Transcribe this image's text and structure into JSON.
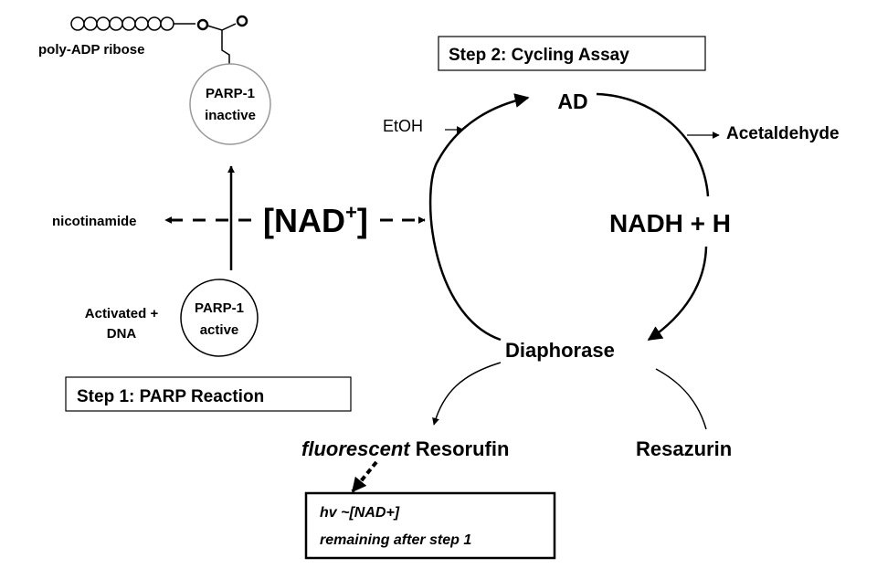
{
  "labels": {
    "poly_adp_ribose": "poly-ADP ribose",
    "parp_inactive_line1": "PARP-1",
    "parp_inactive_line2": "inactive",
    "parp_active_line1": "PARP-1",
    "parp_active_line2": "active",
    "activated_dna_line1": "Activated +",
    "activated_dna_line2": "DNA",
    "nicotinamide": "nicotinamide",
    "nad_main": "[NAD",
    "nad_sup": "+",
    "nad_close": "]",
    "step1": "Step 1:  PARP Reaction",
    "step2": "Step 2:  Cycling  Assay",
    "ad": "AD",
    "etoh": "EtOH",
    "acetaldehyde": "Acetaldehyde",
    "nadh": "NADH + H",
    "diaphorase": "Diaphorase",
    "fluorescent": "fluorescent",
    "resorufin": "Resorufin",
    "resazurin": "Resazurin",
    "result_line1": "hv ~[NAD+]",
    "result_line2": "remaining after step 1"
  }
}
